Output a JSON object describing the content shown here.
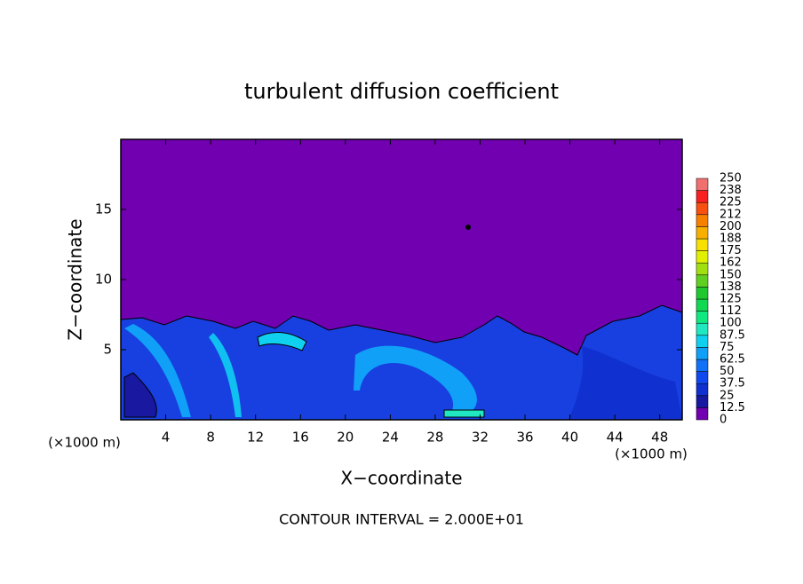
{
  "chart_data": {
    "type": "contour",
    "title": "turbulent diffusion coefficient",
    "x_label": "X−coordinate",
    "y_label": "Z−coordinate",
    "x_unit_label": "(×1000 m)",
    "x_unit_label_right": "(×1000 m)",
    "footer": "CONTOUR INTERVAL = 2.000E+01",
    "xlim": [
      0,
      50
    ],
    "xticks": [
      4,
      8,
      12,
      16,
      20,
      24,
      28,
      32,
      36,
      40,
      44,
      48
    ],
    "ylim": [
      0,
      20
    ],
    "yticks": [
      5,
      10,
      15
    ],
    "colorbar": {
      "levels": [
        0,
        12.5,
        25,
        37.5,
        50,
        62.5,
        75,
        87.5,
        100,
        112,
        125,
        138,
        150,
        162,
        175,
        188,
        200,
        212,
        225,
        238,
        250
      ],
      "colors": [
        "#7000b0",
        "#1818a0",
        "#1030d0",
        "#1048f0",
        "#1070f8",
        "#10a0f8",
        "#10d0f0",
        "#20e8c0",
        "#10e880",
        "#10d850",
        "#20c830",
        "#60d020",
        "#a0e010",
        "#e0f000",
        "#f8e000",
        "#f8b000",
        "#f88000",
        "#f85010",
        "#f82020",
        "#f07070"
      ]
    }
  }
}
